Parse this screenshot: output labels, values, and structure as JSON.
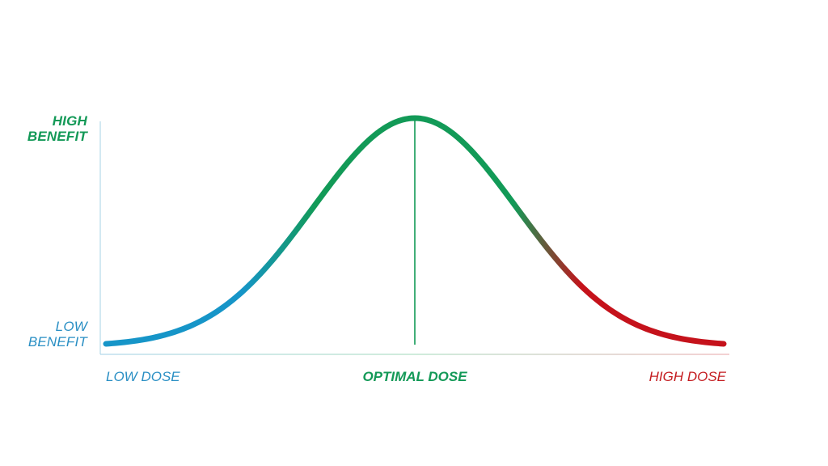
{
  "colors": {
    "low": "#1695c8",
    "optimal": "#129a57",
    "high": "#c5121b"
  },
  "chart_data": {
    "type": "line",
    "title": "",
    "xlabel": "",
    "ylabel": "",
    "x_ticks": [
      "LOW DOSE",
      "OPTIMAL DOSE",
      "HIGH DOSE"
    ],
    "y_ticks": [
      {
        "lines": [
          "LOW",
          "BENEFIT"
        ]
      },
      {
        "lines": [
          "HIGH",
          "BENEFIT"
        ]
      }
    ],
    "curve": {
      "shape": "bell",
      "peak_x": 0.5,
      "peak_y": 1.0,
      "baseline_y": 0.0
    },
    "annotations": [
      {
        "type": "vertical-line",
        "x": 0.5,
        "label": "OPTIMAL DOSE"
      }
    ],
    "grid": false,
    "legend": "none"
  }
}
